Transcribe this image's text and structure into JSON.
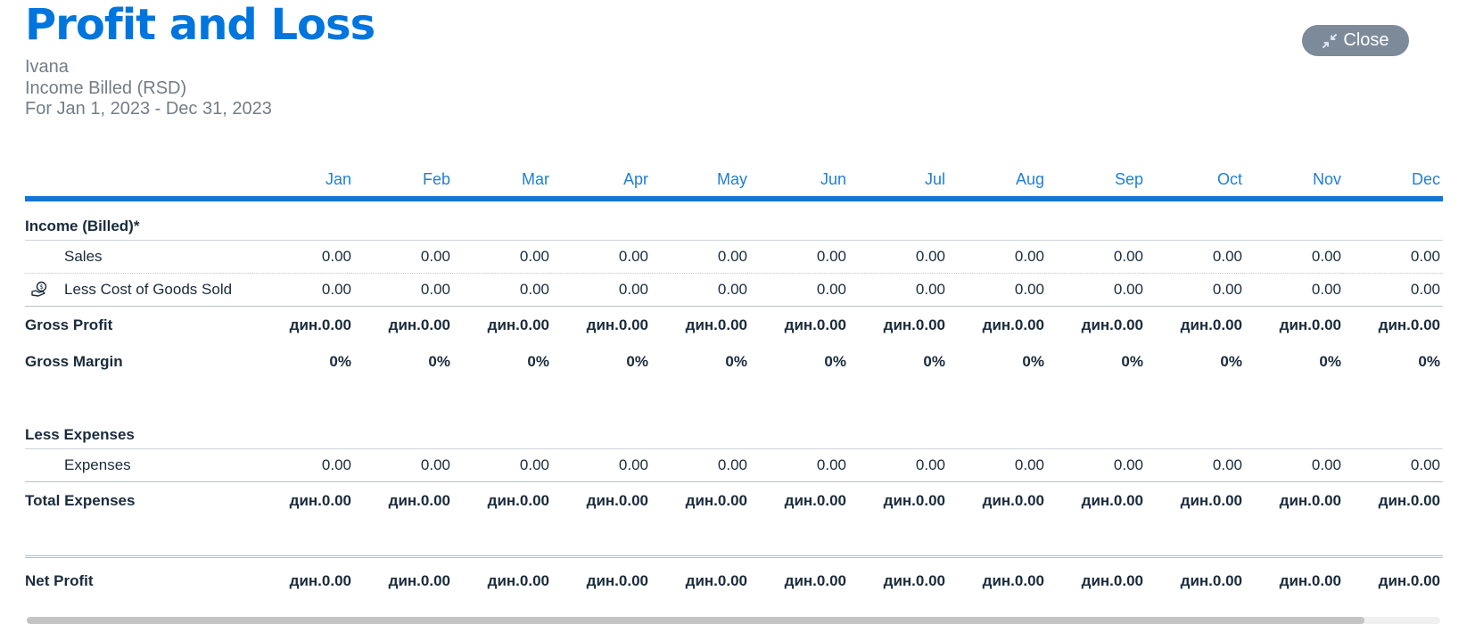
{
  "report": {
    "title": "Profit and Loss",
    "owner": "Ivana",
    "basis": "Income Billed (RSD)",
    "period": "For Jan 1, 2023 - Dec 31, 2023"
  },
  "close_button": {
    "label": "Close",
    "icon": "compress-arrows-icon"
  },
  "months": [
    "Jan",
    "Feb",
    "Mar",
    "Apr",
    "May",
    "Jun",
    "Jul",
    "Aug",
    "Sep",
    "Oct",
    "Nov",
    "Dec"
  ],
  "income": {
    "heading": "Income (Billed)*",
    "sales": {
      "label": "Sales",
      "values": [
        "0.00",
        "0.00",
        "0.00",
        "0.00",
        "0.00",
        "0.00",
        "0.00",
        "0.00",
        "0.00",
        "0.00",
        "0.00",
        "0.00"
      ]
    },
    "cogs": {
      "label": "Less Cost of Goods Sold",
      "icon": "coin-hand-icon",
      "values": [
        "0.00",
        "0.00",
        "0.00",
        "0.00",
        "0.00",
        "0.00",
        "0.00",
        "0.00",
        "0.00",
        "0.00",
        "0.00",
        "0.00"
      ]
    }
  },
  "gross_profit": {
    "label": "Gross Profit",
    "values": [
      "дин.0.00",
      "дин.0.00",
      "дин.0.00",
      "дин.0.00",
      "дин.0.00",
      "дин.0.00",
      "дин.0.00",
      "дин.0.00",
      "дин.0.00",
      "дин.0.00",
      "дин.0.00",
      "дин.0.00"
    ]
  },
  "gross_margin": {
    "label": "Gross Margin",
    "values": [
      "0%",
      "0%",
      "0%",
      "0%",
      "0%",
      "0%",
      "0%",
      "0%",
      "0%",
      "0%",
      "0%",
      "0%"
    ]
  },
  "expenses": {
    "heading": "Less Expenses",
    "line": {
      "label": "Expenses",
      "values": [
        "0.00",
        "0.00",
        "0.00",
        "0.00",
        "0.00",
        "0.00",
        "0.00",
        "0.00",
        "0.00",
        "0.00",
        "0.00",
        "0.00"
      ]
    }
  },
  "total_expenses": {
    "label": "Total Expenses",
    "values": [
      "дин.0.00",
      "дин.0.00",
      "дин.0.00",
      "дин.0.00",
      "дин.0.00",
      "дин.0.00",
      "дин.0.00",
      "дин.0.00",
      "дин.0.00",
      "дин.0.00",
      "дин.0.00",
      "дин.0.00"
    ]
  },
  "net_profit": {
    "label": "Net Profit",
    "values": [
      "дин.0.00",
      "дин.0.00",
      "дин.0.00",
      "дин.0.00",
      "дин.0.00",
      "дин.0.00",
      "дин.0.00",
      "дин.0.00",
      "дин.0.00",
      "дин.0.00",
      "дин.0.00",
      "дин.0.00"
    ]
  }
}
